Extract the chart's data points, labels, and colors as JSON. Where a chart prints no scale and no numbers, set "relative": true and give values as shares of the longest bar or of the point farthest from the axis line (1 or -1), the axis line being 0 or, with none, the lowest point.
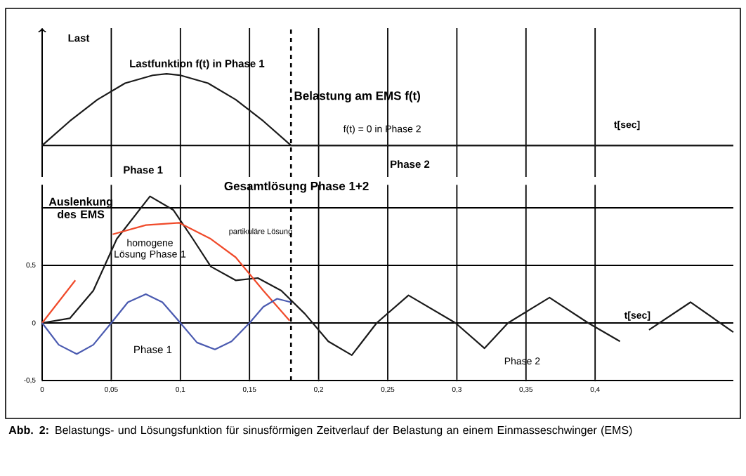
{
  "chart_data": [
    {
      "type": "line",
      "relative": true,
      "ylabel": "Last",
      "xlabel": "t[sec]",
      "color": "#1a1a1a",
      "x": [
        0,
        0.02,
        0.04,
        0.06,
        0.08,
        0.09,
        0.1,
        0.12,
        0.14,
        0.16,
        0.18,
        0.5
      ],
      "values": [
        0,
        0.34,
        0.64,
        0.87,
        0.98,
        1,
        0.98,
        0.87,
        0.64,
        0.34,
        0,
        0
      ],
      "xlim": [
        0,
        0.5
      ],
      "xticks": [
        0,
        0.05,
        0.1,
        0.15,
        0.2,
        0.25,
        0.3,
        0.35,
        0.4
      ],
      "tick_labels": false,
      "grid": "x",
      "ref_lines": [
        {
          "axis": "x",
          "value": 0.18,
          "line_style": "dashed"
        }
      ],
      "annotations": [
        "Lastfunktion f(t)  in Phase 1",
        "Belastung am EMS f(t)",
        "f(t) = 0   in Phase 2",
        "Phase 1",
        "Phase 2"
      ]
    },
    {
      "type": "line",
      "ylabel": "Auslenkung des EMS",
      "xlabel": "t[sec]",
      "xlim": [
        0,
        0.5
      ],
      "ylim": [
        -0.5,
        1.2
      ],
      "xticks": [
        {
          "value": 0,
          "label": "0"
        },
        {
          "value": 0.05,
          "label": "0,05"
        },
        {
          "value": 0.1,
          "label": "0,1"
        },
        {
          "value": 0.15,
          "label": "0,15"
        },
        {
          "value": 0.2,
          "label": "0,2"
        },
        {
          "value": 0.25,
          "label": "0,25"
        },
        {
          "value": 0.3,
          "label": "0,3"
        },
        {
          "value": 0.35,
          "label": "0,35"
        },
        {
          "value": 0.4,
          "label": "0,4"
        }
      ],
      "yticks": [
        {
          "value": -0.5,
          "label": "-0,5"
        },
        0,
        {
          "value": 0.5,
          "label": "0,5"
        },
        {
          "value": 1,
          "label": null
        }
      ],
      "grid": true,
      "series": [
        {
          "color": "#1a1a1a",
          "x": [
            0,
            0.02,
            0.037,
            0.054,
            0.078,
            0.095,
            0.109,
            0.122,
            0.14,
            0.156,
            0.173,
            0.19,
            0.207,
            0.224,
            0.242,
            0.265,
            0.299,
            0.32,
            0.337,
            0.367,
            0.395,
            0.418,
            0.43,
            0.439,
            0.469,
            0.5
          ],
          "values": [
            0,
            0.04,
            0.28,
            0.73,
            1.1,
            0.98,
            0.73,
            0.49,
            0.37,
            0.39,
            0.28,
            0.08,
            -0.16,
            -0.28,
            0,
            0.24,
            0,
            -0.22,
            0,
            0.22,
            0,
            -0.16,
            null,
            -0.06,
            0.18,
            -0.08
          ]
        },
        {
          "color": "#f04a2a",
          "x": [
            0,
            0.024,
            0.04,
            0.051,
            0.075,
            0.099,
            0.122,
            0.14,
            0.16,
            0.179
          ],
          "values": [
            0,
            0.37,
            null,
            0.77,
            0.85,
            0.87,
            0.73,
            0.57,
            0.28,
            0.02
          ]
        },
        {
          "color": "#4a5ab0",
          "x": [
            0,
            0.012,
            0.025,
            0.037,
            0.05,
            0.062,
            0.075,
            0.087,
            0.1,
            0.112,
            0.125,
            0.137,
            0.15,
            0.16,
            0.17,
            0.18
          ],
          "values": [
            0,
            -0.19,
            -0.27,
            -0.19,
            0,
            0.18,
            0.25,
            0.18,
            0,
            -0.17,
            -0.23,
            -0.16,
            0,
            0.14,
            0.21,
            0.18
          ]
        }
      ],
      "ref_lines": [
        {
          "axis": "x",
          "value": 0.18,
          "line_style": "dashed"
        }
      ],
      "annotations": [
        "Gesamtlösung Phase 1+2",
        "partikuläre Lösung",
        "homogene Lösung Phase 1",
        "Phase 1",
        "Phase 2",
        "**Abb. 2:** Belastungs- und Lösungsfunktion für sinusförmigen Zeitverlauf der Belastung an einem Einmasseschwinger (EMS)"
      ]
    }
  ]
}
